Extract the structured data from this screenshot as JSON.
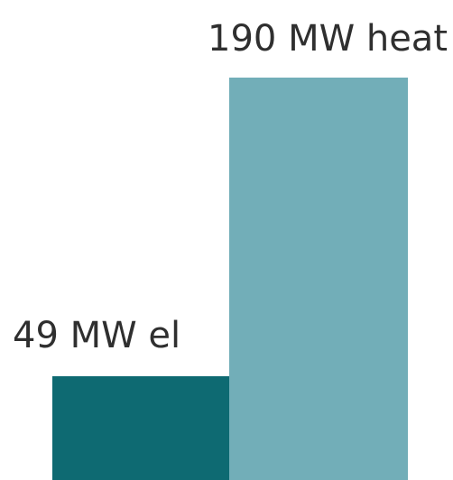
{
  "chart_data": {
    "type": "bar",
    "categories": [
      "el",
      "heat"
    ],
    "values": [
      49,
      190
    ],
    "data_labels": [
      "49 MW el",
      "190 MW heat"
    ],
    "title": "",
    "xlabel": "",
    "ylabel": "",
    "ylim": [
      0,
      190
    ],
    "grid": false,
    "colors": [
      "#0e6a72",
      "#72aeb8"
    ]
  }
}
